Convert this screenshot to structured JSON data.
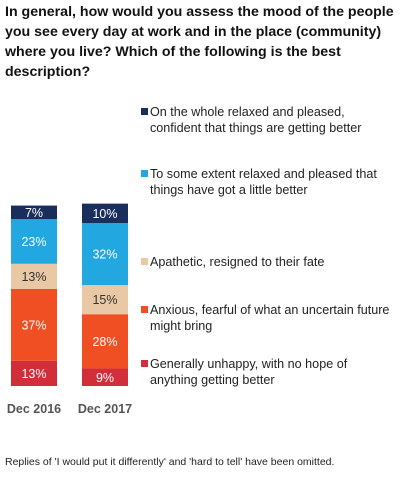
{
  "title": "In general, how would you assess the mood of the people you see every day at work and in the place (community) where you live? Which of the following is the best description?",
  "footnote": "Replies of 'I would put it differently' and 'hard to tell' have been omitted.",
  "chart_data": {
    "type": "bar",
    "stacked": true,
    "categories": [
      "Dec 2016",
      "Dec 2017"
    ],
    "series": [
      {
        "name": "On the whole relaxed and pleased, confident that things are getting better",
        "color": "#1a2e5c",
        "values": [
          7,
          10
        ]
      },
      {
        "name": "To some extent relaxed and pleased that things have got a little better",
        "color": "#22a7e0",
        "values": [
          23,
          32
        ]
      },
      {
        "name": "Apathetic, resigned to their fate",
        "color": "#e9c9a5",
        "values": [
          13,
          15
        ]
      },
      {
        "name": "Anxious, fearful of what an uncertain future might bring",
        "color": "#f04e23",
        "values": [
          37,
          28
        ]
      },
      {
        "name": "Generally unhappy, with no hope of anything getting better",
        "color": "#d12e3a",
        "values": [
          13,
          9
        ]
      }
    ],
    "value_suffix": "%",
    "legend_position": "right"
  }
}
